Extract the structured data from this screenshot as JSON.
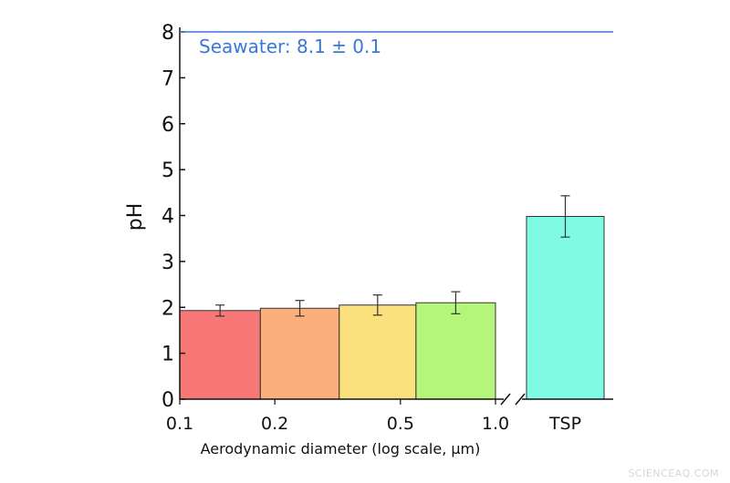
{
  "chart_data": {
    "type": "bar",
    "ylabel": "pH",
    "xlabel": "Aerodynamic diameter (log scale, μm)",
    "ylim": [
      0,
      8
    ],
    "y_ticks": [
      "0",
      "1",
      "2",
      "3",
      "4",
      "5",
      "6",
      "7",
      "8"
    ],
    "x_scale": "log",
    "x_ticks": [
      {
        "label": "0.1",
        "value": 0.1
      },
      {
        "label": "0.2",
        "value": 0.2
      },
      {
        "label": "0.5",
        "value": 0.5
      },
      {
        "label": "1.0",
        "value": 1.0
      },
      {
        "label": "TSP",
        "value": null
      }
    ],
    "axis_break": true,
    "bars": [
      {
        "x_from": 0.1,
        "x_to": 0.18,
        "value": 1.93,
        "error": 0.12,
        "color": "#f87878"
      },
      {
        "x_from": 0.18,
        "x_to": 0.32,
        "value": 1.98,
        "error": 0.17,
        "color": "#fbb07c"
      },
      {
        "x_from": 0.32,
        "x_to": 0.56,
        "value": 2.05,
        "error": 0.22,
        "color": "#fbe17e"
      },
      {
        "x_from": 0.56,
        "x_to": 1.0,
        "value": 2.1,
        "error": 0.24,
        "color": "#b4f57a"
      },
      {
        "category": "TSP",
        "value": 3.98,
        "error": 0.45,
        "color": "#7ffbe3"
      }
    ],
    "reference_line": {
      "value": 8.0,
      "label": "Seawater: 8.1 ± 0.1",
      "color": "#3a77d6"
    }
  },
  "watermark": "SCIENCEAQ.COM"
}
